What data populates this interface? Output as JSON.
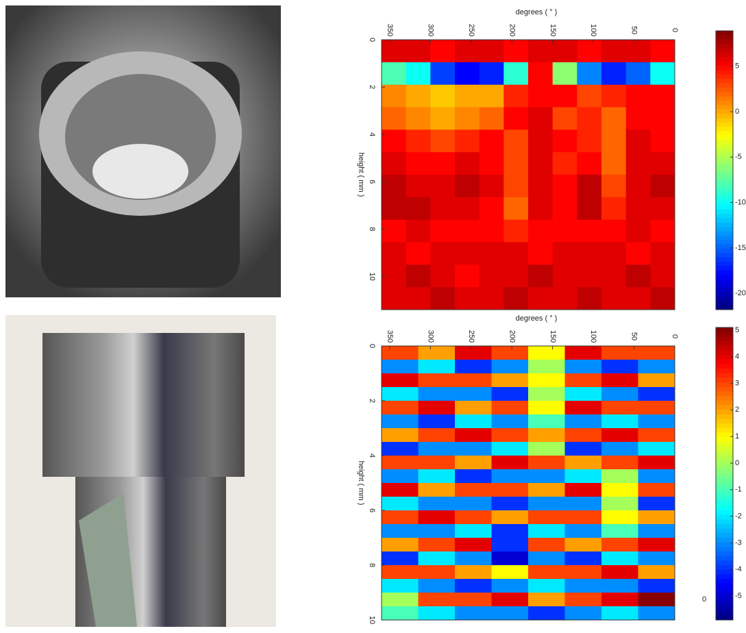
{
  "chart_data": [
    {
      "type": "heatmap",
      "xlabel": "degrees ( ° )",
      "ylabel": "height ( mm )",
      "xlim": [
        360,
        0
      ],
      "xticks": [
        350,
        300,
        250,
        200,
        150,
        100,
        50,
        0
      ],
      "ylim": [
        0,
        11.4
      ],
      "yticks": [
        0,
        2,
        4,
        6,
        8,
        10
      ],
      "colormap": "jet",
      "clim": [
        -21.8,
        8.9
      ],
      "cticks": [
        5,
        0,
        -5,
        -10,
        -15,
        -20
      ],
      "values": [
        [
          6,
          6,
          5,
          6,
          6,
          5,
          6,
          6,
          5,
          6,
          6,
          5
        ],
        [
          -8,
          -10,
          -16,
          -18,
          -17,
          -9,
          5,
          -6,
          -14,
          -17,
          -15,
          -10
        ],
        [
          1,
          0,
          -1,
          0,
          0,
          4,
          5,
          5,
          3,
          4,
          5,
          5
        ],
        [
          2,
          1,
          0,
          1,
          2,
          5,
          6,
          3,
          4,
          2,
          5,
          5
        ],
        [
          5,
          4,
          3,
          4,
          5,
          3,
          6,
          5,
          4,
          2,
          6,
          5
        ],
        [
          6,
          5,
          5,
          6,
          5,
          3,
          6,
          4,
          5,
          2,
          6,
          6
        ],
        [
          7,
          6,
          6,
          7,
          6,
          3,
          6,
          5,
          7,
          3,
          6,
          7
        ],
        [
          7,
          7,
          6,
          6,
          5,
          2,
          6,
          5,
          7,
          4,
          6,
          6
        ],
        [
          5,
          6,
          5,
          5,
          5,
          4,
          5,
          5,
          5,
          5,
          6,
          5
        ],
        [
          6,
          5,
          6,
          6,
          6,
          6,
          5,
          6,
          6,
          6,
          5,
          6
        ],
        [
          6,
          7,
          6,
          5,
          6,
          6,
          7,
          6,
          6,
          6,
          7,
          6
        ],
        [
          6,
          6,
          7,
          6,
          6,
          7,
          6,
          6,
          7,
          6,
          6,
          7
        ]
      ]
    },
    {
      "type": "heatmap",
      "xlabel": "degrees ( ° )",
      "ylabel": "height ( mm )",
      "xlim": [
        360,
        0
      ],
      "xticks": [
        350,
        300,
        250,
        200,
        150,
        100,
        50,
        0
      ],
      "ylim": [
        0,
        10
      ],
      "yticks": [
        0,
        2,
        4,
        6,
        8,
        10
      ],
      "colormap": "jet",
      "clim": [
        -5.9,
        5.1
      ],
      "cticks": [
        5,
        4,
        3,
        2,
        1,
        0,
        -1,
        -2,
        -3,
        -4,
        -5
      ],
      "annotation": "0",
      "values": [
        [
          3,
          2,
          4,
          3,
          1,
          4,
          3,
          3
        ],
        [
          -3,
          -2,
          -4,
          -3,
          0,
          -3,
          -4,
          -3
        ],
        [
          4,
          3,
          3,
          2,
          1,
          3,
          4,
          2
        ],
        [
          -2,
          -3,
          -3,
          -4,
          0,
          -2,
          -3,
          -4
        ],
        [
          3,
          4,
          2,
          3,
          1,
          4,
          3,
          3
        ],
        [
          -3,
          -4,
          -2,
          -3,
          -1,
          -3,
          -2,
          -3
        ],
        [
          2,
          3,
          4,
          3,
          2,
          3,
          4,
          3
        ],
        [
          -4,
          -3,
          -3,
          -2,
          0,
          -4,
          -3,
          -2
        ],
        [
          3,
          3,
          2,
          4,
          3,
          2,
          3,
          4
        ],
        [
          -3,
          -2,
          -4,
          -3,
          -3,
          -2,
          0,
          -3
        ],
        [
          4,
          2,
          3,
          3,
          2,
          4,
          1,
          3
        ],
        [
          -2,
          -3,
          -3,
          -4,
          -3,
          -3,
          0,
          -4
        ],
        [
          3,
          4,
          3,
          2,
          3,
          3,
          1,
          2
        ],
        [
          -3,
          -3,
          -2,
          -4,
          -2,
          -3,
          -1,
          -3
        ],
        [
          2,
          3,
          4,
          -4,
          3,
          2,
          3,
          4
        ],
        [
          -4,
          -2,
          -3,
          -5,
          -3,
          -4,
          -2,
          -3
        ],
        [
          3,
          3,
          2,
          1,
          3,
          3,
          4,
          2
        ],
        [
          -2,
          -3,
          -4,
          -3,
          -2,
          -3,
          -3,
          -4
        ],
        [
          0,
          3,
          3,
          4,
          2,
          3,
          4,
          5
        ],
        [
          -1,
          -2,
          -3,
          -3,
          -4,
          -3,
          -2,
          -3
        ]
      ]
    }
  ]
}
